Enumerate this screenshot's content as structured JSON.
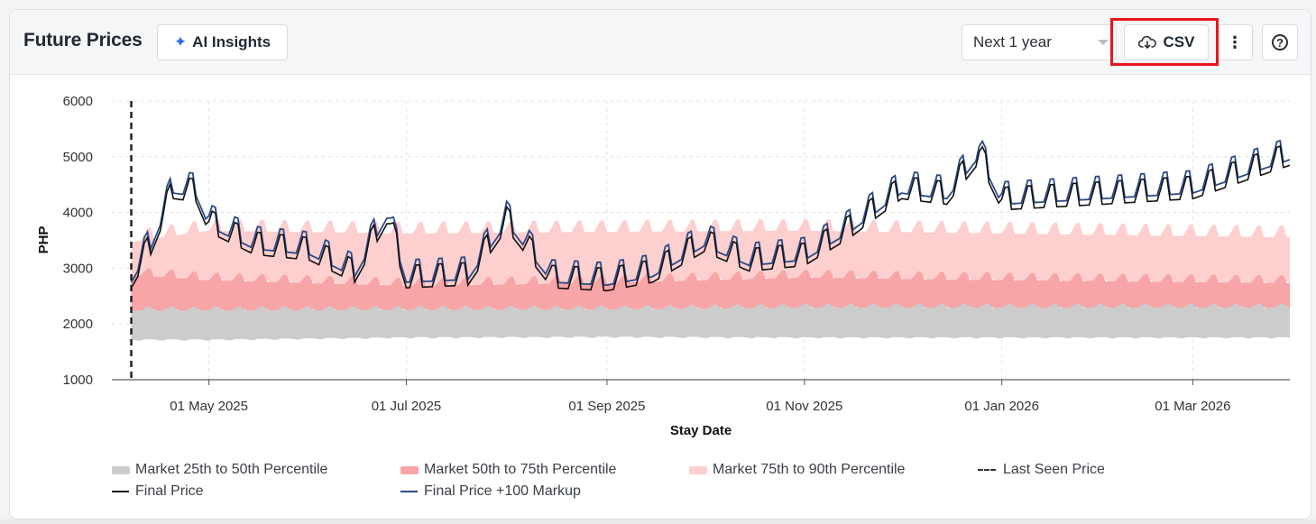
{
  "header": {
    "title": "Future Prices",
    "ai_insights_label": "AI Insights",
    "range_select_value": "Next 1 year",
    "csv_label": "CSV",
    "more_label": "⋮",
    "help_label": "?"
  },
  "colors": {
    "p25_50": "#cccccc",
    "p50_75": "#f8a5a7",
    "p75_90": "#fdcfcf",
    "final_price": "#111111",
    "final_markup": "#2b4a86",
    "last_seen": "#222222",
    "accent": "#2f6fec",
    "highlight": "#e8151b"
  },
  "chart_data": {
    "type": "area",
    "xlabel": "Stay Date",
    "ylabel": "PHP",
    "ylim": [
      1000,
      6000
    ],
    "yticks": [
      "1000",
      "2000",
      "3000",
      "4000",
      "5000",
      "6000"
    ],
    "x_start": "2025-04-01",
    "x_end": "2026-03-31",
    "xticks": [
      {
        "date": "2025-05-01",
        "label": "01 May 2025"
      },
      {
        "date": "2025-07-01",
        "label": "01 Jul 2025"
      },
      {
        "date": "2025-09-01",
        "label": "01 Sep 2025"
      },
      {
        "date": "2025-11-01",
        "label": "01 Nov 2025"
      },
      {
        "date": "2026-01-01",
        "label": "01 Jan 2026"
      },
      {
        "date": "2026-03-01",
        "label": "01 Mar 2026"
      }
    ],
    "grid": true,
    "last_seen_price_date": "2025-04-07",
    "legend_position": "bottom",
    "series": [
      {
        "name": "Market 25th to 50th Percentile",
        "kind": "band",
        "lower": [
          {
            "x": "2025-04-07",
            "y": 1720
          },
          {
            "x": "2025-05-01",
            "y": 1720
          },
          {
            "x": "2025-07-01",
            "y": 1760
          },
          {
            "x": "2025-09-01",
            "y": 1770
          },
          {
            "x": "2025-11-01",
            "y": 1760
          },
          {
            "x": "2026-01-01",
            "y": 1760
          },
          {
            "x": "2026-03-31",
            "y": 1760
          }
        ],
        "upper": [
          {
            "x": "2025-04-07",
            "y": 2250
          },
          {
            "x": "2025-05-01",
            "y": 2250
          },
          {
            "x": "2025-07-01",
            "y": 2260
          },
          {
            "x": "2025-09-01",
            "y": 2270
          },
          {
            "x": "2025-11-01",
            "y": 2300
          },
          {
            "x": "2026-01-01",
            "y": 2300
          },
          {
            "x": "2026-03-31",
            "y": 2300
          }
        ]
      },
      {
        "name": "Market 50th to 75th Percentile",
        "kind": "band",
        "lower": [
          {
            "x": "2025-04-07",
            "y": 2250
          },
          {
            "x": "2025-05-01",
            "y": 2250
          },
          {
            "x": "2025-07-01",
            "y": 2260
          },
          {
            "x": "2025-09-01",
            "y": 2270
          },
          {
            "x": "2025-11-01",
            "y": 2300
          },
          {
            "x": "2026-01-01",
            "y": 2300
          },
          {
            "x": "2026-03-31",
            "y": 2300
          }
        ],
        "upper": [
          {
            "x": "2025-04-07",
            "y": 2900
          },
          {
            "x": "2025-05-01",
            "y": 2800
          },
          {
            "x": "2025-07-01",
            "y": 2700
          },
          {
            "x": "2025-09-01",
            "y": 2750
          },
          {
            "x": "2025-11-01",
            "y": 2850
          },
          {
            "x": "2026-01-01",
            "y": 2800
          },
          {
            "x": "2026-03-31",
            "y": 2750
          }
        ]
      },
      {
        "name": "Market 75th to 90th Percentile",
        "kind": "band",
        "lower": [
          {
            "x": "2025-04-07",
            "y": 2900
          },
          {
            "x": "2025-05-01",
            "y": 2800
          },
          {
            "x": "2025-07-01",
            "y": 2700
          },
          {
            "x": "2025-09-01",
            "y": 2750
          },
          {
            "x": "2025-11-01",
            "y": 2850
          },
          {
            "x": "2026-01-01",
            "y": 2800
          },
          {
            "x": "2026-03-31",
            "y": 2750
          }
        ],
        "upper": [
          {
            "x": "2025-04-07",
            "y": 3500
          },
          {
            "x": "2025-05-01",
            "y": 3700
          },
          {
            "x": "2025-07-01",
            "y": 3650
          },
          {
            "x": "2025-09-01",
            "y": 3680
          },
          {
            "x": "2025-11-01",
            "y": 3700
          },
          {
            "x": "2026-01-01",
            "y": 3650
          },
          {
            "x": "2026-03-31",
            "y": 3580
          }
        ]
      },
      {
        "name": "Last Seen Price",
        "kind": "dashed-vertical"
      },
      {
        "name": "Final Price",
        "kind": "line",
        "points": [
          {
            "x": "2025-04-07",
            "y": 2700
          },
          {
            "x": "2025-04-13",
            "y": 3300
          },
          {
            "x": "2025-04-20",
            "y": 4300
          },
          {
            "x": "2025-04-27",
            "y": 4250
          },
          {
            "x": "2025-05-01",
            "y": 3700
          },
          {
            "x": "2025-05-15",
            "y": 3300
          },
          {
            "x": "2025-06-01",
            "y": 3200
          },
          {
            "x": "2025-06-15",
            "y": 2800
          },
          {
            "x": "2025-06-25",
            "y": 3850
          },
          {
            "x": "2025-07-01",
            "y": 2700
          },
          {
            "x": "2025-07-20",
            "y": 2750
          },
          {
            "x": "2025-08-01",
            "y": 3750
          },
          {
            "x": "2025-08-15",
            "y": 2700
          },
          {
            "x": "2025-09-01",
            "y": 2650
          },
          {
            "x": "2025-09-15",
            "y": 2800
          },
          {
            "x": "2025-10-01",
            "y": 3350
          },
          {
            "x": "2025-10-15",
            "y": 3000
          },
          {
            "x": "2025-11-01",
            "y": 3100
          },
          {
            "x": "2025-11-15",
            "y": 3600
          },
          {
            "x": "2025-12-01",
            "y": 4300
          },
          {
            "x": "2025-12-15",
            "y": 4200
          },
          {
            "x": "2025-12-25",
            "y": 4950
          },
          {
            "x": "2026-01-01",
            "y": 4100
          },
          {
            "x": "2026-02-01",
            "y": 4200
          },
          {
            "x": "2026-03-01",
            "y": 4300
          },
          {
            "x": "2026-03-31",
            "y": 4900
          }
        ]
      },
      {
        "name": "Final Price +100 Markup",
        "kind": "line",
        "points": [
          {
            "x": "2025-04-07",
            "y": 2800
          },
          {
            "x": "2025-04-13",
            "y": 3400
          },
          {
            "x": "2025-04-20",
            "y": 4400
          },
          {
            "x": "2025-04-27",
            "y": 4350
          },
          {
            "x": "2025-05-01",
            "y": 3800
          },
          {
            "x": "2025-05-15",
            "y": 3400
          },
          {
            "x": "2025-06-01",
            "y": 3300
          },
          {
            "x": "2025-06-15",
            "y": 2900
          },
          {
            "x": "2025-06-25",
            "y": 3950
          },
          {
            "x": "2025-07-01",
            "y": 2800
          },
          {
            "x": "2025-07-20",
            "y": 2850
          },
          {
            "x": "2025-08-01",
            "y": 3850
          },
          {
            "x": "2025-08-15",
            "y": 2800
          },
          {
            "x": "2025-09-01",
            "y": 2750
          },
          {
            "x": "2025-09-15",
            "y": 2900
          },
          {
            "x": "2025-10-01",
            "y": 3450
          },
          {
            "x": "2025-10-15",
            "y": 3100
          },
          {
            "x": "2025-11-01",
            "y": 3200
          },
          {
            "x": "2025-11-15",
            "y": 3700
          },
          {
            "x": "2025-12-01",
            "y": 4400
          },
          {
            "x": "2025-12-15",
            "y": 4300
          },
          {
            "x": "2025-12-25",
            "y": 5050
          },
          {
            "x": "2026-01-01",
            "y": 4200
          },
          {
            "x": "2026-02-01",
            "y": 4300
          },
          {
            "x": "2026-03-01",
            "y": 4400
          },
          {
            "x": "2026-03-31",
            "y": 5000
          }
        ]
      }
    ]
  }
}
